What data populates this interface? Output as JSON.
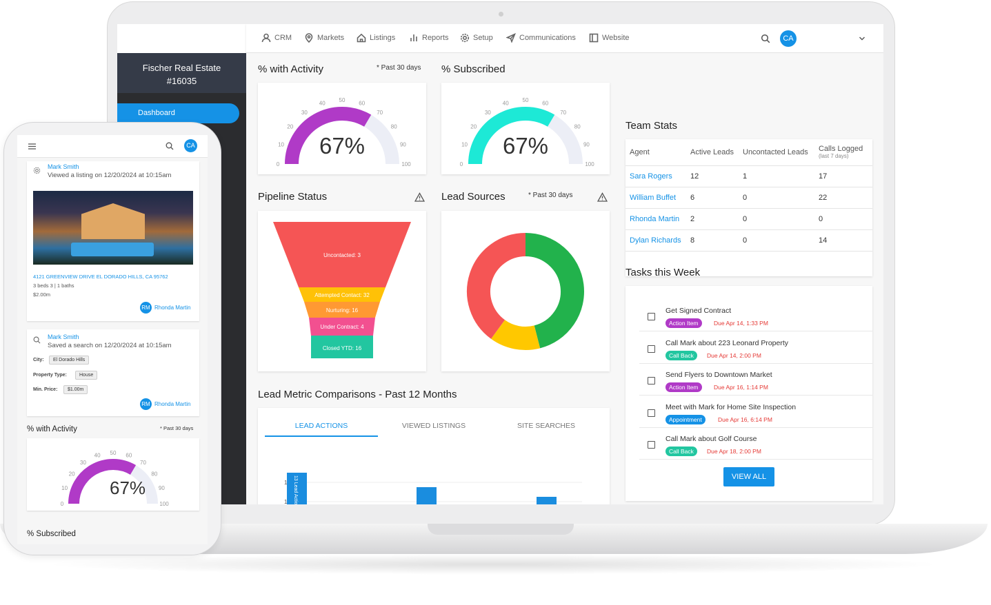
{
  "org": {
    "name": "Fischer Real Estate",
    "id": "#16035"
  },
  "nav": {
    "dashboard": "Dashboard",
    "items": [
      "CRM",
      "Markets",
      "Listings",
      "Reports",
      "Setup",
      "Communications",
      "Website"
    ]
  },
  "user": {
    "initials": "CA"
  },
  "activity": {
    "title": "% with Activity",
    "note": "* Past 30 days",
    "value": "67%",
    "percent": 67
  },
  "subscribed": {
    "title": "% Subscribed",
    "value": "67%",
    "percent": 67
  },
  "gauge_ticks": [
    "0",
    "10",
    "20",
    "30",
    "40",
    "50",
    "60",
    "70",
    "80",
    "90",
    "100"
  ],
  "pipeline": {
    "title": "Pipeline Status",
    "stages": [
      {
        "label": "Uncontacted: 3",
        "color": "#f55555"
      },
      {
        "label": "Attempted Contact: 32",
        "color": "#ffc107"
      },
      {
        "label": "Nurturing: 16",
        "color": "#ff9933"
      },
      {
        "label": "Under Contract: 4",
        "color": "#f25090"
      },
      {
        "label": "Closed YTD: 16",
        "color": "#22c6a0"
      }
    ]
  },
  "lead_sources": {
    "title": "Lead Sources",
    "note": "* Past 30 days",
    "segments": [
      {
        "color": "#22b24c",
        "fraction": 0.46
      },
      {
        "color": "#ffc800",
        "fraction": 0.14
      },
      {
        "color": "#f55555",
        "fraction": 0.4
      }
    ]
  },
  "metrics": {
    "title": "Lead Metric Comparisons - Past 12 Months",
    "tabs": [
      "LEAD ACTIONS",
      "VIEWED LISTINGS",
      "SITE SEARCHES"
    ],
    "chart_data": {
      "type": "bar",
      "y_ticks": [
        "12",
        "10"
      ],
      "bar_label": "13 Lead Actions",
      "values": [
        13,
        11.5,
        10.5
      ],
      "ylim": [
        9,
        14
      ]
    }
  },
  "team": {
    "title": "Team Stats",
    "headers": [
      "Agent",
      "Active Leads",
      "Uncontacted Leads",
      "Calls Logged"
    ],
    "calls_sub": "(last 7 days)",
    "rows": [
      [
        "Sara Rogers",
        "12",
        "1",
        "17"
      ],
      [
        "William Buffet",
        "6",
        "0",
        "22"
      ],
      [
        "Rhonda Martin",
        "2",
        "0",
        "0"
      ],
      [
        "Dylan Richards",
        "8",
        "0",
        "14"
      ]
    ]
  },
  "tasks": {
    "title": "Tasks this Week",
    "view_all": "VIEW ALL",
    "items": [
      {
        "title": "Get Signed Contract",
        "tag": "Action Item",
        "tag_color": "#b03ac7",
        "due": "Due Apr 14, 1:33 PM"
      },
      {
        "title": "Call Mark about 223 Leonard Property",
        "tag": "Call Back",
        "tag_color": "#22c6a0",
        "due": "Due Apr 14, 2:00 PM"
      },
      {
        "title": "Send Flyers to Downtown Market",
        "tag": "Action Item",
        "tag_color": "#b03ac7",
        "due": "Due Apr 16, 1:14 PM"
      },
      {
        "title": "Meet with Mark for Home Site Inspection",
        "tag": "Appointment",
        "tag_color": "#1592e6",
        "due": "Due Apr 16, 6:14 PM"
      },
      {
        "title": "Call Mark about Golf Course",
        "tag": "Call Back",
        "tag_color": "#22c6a0",
        "due": "Due Apr 18, 2:00 PM"
      }
    ]
  },
  "phone": {
    "feed1": {
      "name": "Mark Smith",
      "text": "Viewed a listing on 12/20/2024 at 10:15am",
      "address": "4121 GREENVIEW DRIVE EL DORADO HILLS, CA 95762",
      "specs": "3 beds  3 | 1 baths",
      "price": "$2.00m",
      "agent_initials": "RM",
      "agent": "Rhonda Martin"
    },
    "feed2": {
      "name": "Mark Smith",
      "text": "Saved a search on 12/20/2024 at 10:15am",
      "city_label": "City:",
      "city": "El Dorado Hills",
      "type_label": "Property Type:",
      "type": "House",
      "price_label": "Min. Price:",
      "price": "$1.00m",
      "agent_initials": "RM",
      "agent": "Rhonda Martin"
    },
    "activity_title": "% with Activity",
    "activity_note": "* Past 30 days",
    "activity_value": "67%",
    "subscribed_title": "% Subscribed"
  }
}
